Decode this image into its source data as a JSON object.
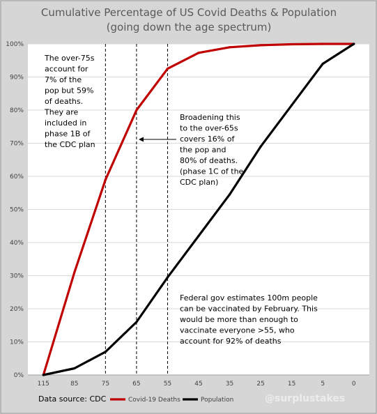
{
  "chart_data": {
    "type": "line",
    "title": "Cumulative Percentage of US Covid Deaths & Population",
    "subtitle": "(going down the age spectrum)",
    "categories": [
      "115",
      "85",
      "75",
      "65",
      "55",
      "45",
      "35",
      "25",
      "15",
      "5",
      "0"
    ],
    "y_tick_labels": [
      "0%",
      "10%",
      "20%",
      "30%",
      "40%",
      "50%",
      "60%",
      "70%",
      "80%",
      "90%",
      "100%"
    ],
    "ylim": [
      0,
      100
    ],
    "grid": true,
    "series": [
      {
        "name": "Covid-19 Deaths",
        "color": "#c00000",
        "values": [
          0,
          31,
          59,
          80,
          92.5,
          97.3,
          99.0,
          99.6,
          99.9,
          100,
          100
        ]
      },
      {
        "name": "Population",
        "color": "#000000",
        "values": [
          0,
          2,
          7,
          16,
          29.5,
          42,
          54.5,
          69,
          81.5,
          94,
          100
        ]
      }
    ],
    "dashed_lines_at": [
      "75",
      "65",
      "55"
    ],
    "annotations": [
      {
        "id": "over75",
        "lines": [
          "The over-75s",
          "account for",
          "7% of the",
          "pop but 59%",
          "of deaths.",
          "They are",
          "included in",
          "phase 1B of",
          "the CDC plan"
        ]
      },
      {
        "id": "over65",
        "lines": [
          "Broadening this",
          "to the over-65s",
          "covers 16% of",
          "the pop and",
          "80% of deaths.",
          "(phase 1C of the",
          "CDC plan)"
        ]
      },
      {
        "id": "federal",
        "lines": [
          "Federal gov estimates 100m people",
          "can be vaccinated by February. This",
          "would be more than enough to",
          "vaccinate everyone >55, who",
          "account for 92% of deaths"
        ]
      }
    ],
    "legend_position": "bottom"
  },
  "source": "Data source: CDC",
  "watermark": "@surplustakes"
}
